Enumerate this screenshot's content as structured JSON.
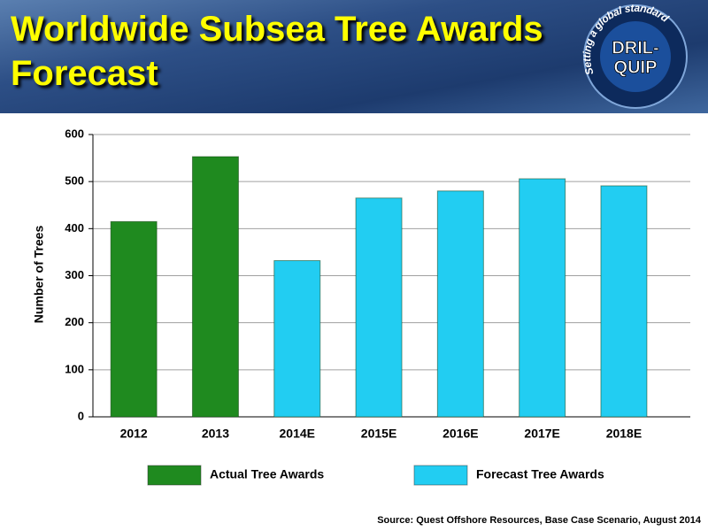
{
  "chart_data": {
    "type": "bar",
    "title": "Worldwide Subsea Tree Awards Forecast",
    "y_label": "Number of Trees",
    "categories": [
      "2012",
      "2013",
      "2014E",
      "2015E",
      "2016E",
      "2017E",
      "2018E"
    ],
    "series": [
      {
        "name": "Actual Tree Awards",
        "color": "#1f8a1f",
        "values": [
          415,
          553,
          null,
          null,
          null,
          null,
          null
        ]
      },
      {
        "name": "Forecast Tree Awards",
        "color": "#22cdf2",
        "values": [
          null,
          null,
          332,
          465,
          480,
          506,
          491
        ]
      }
    ],
    "ylim": [
      0,
      600
    ],
    "yticks": [
      0,
      100,
      200,
      300,
      400,
      500,
      600
    ],
    "grid": true,
    "source": "Source: Quest Offshore Resources, Base Case Scenario, August 2014"
  },
  "logo": {
    "tagline": "Setting a global standard",
    "brand_lines": [
      "DRIL-",
      "QUIP"
    ]
  }
}
